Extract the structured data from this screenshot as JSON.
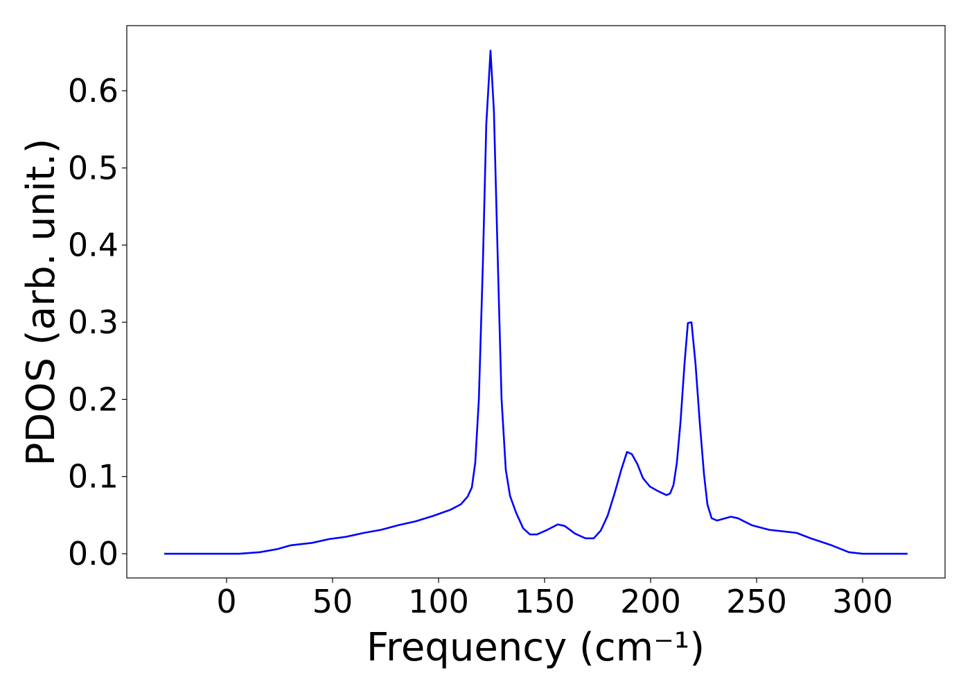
{
  "chart_data": {
    "type": "line",
    "xlabel": "Frequency (cm⁻¹)",
    "ylabel": "PDOS (arb. unit.)",
    "x": [
      -29.4,
      5.9,
      15.7,
      23.9,
      30.4,
      40.2,
      48.4,
      56.5,
      64.7,
      72.9,
      81,
      89.2,
      97.4,
      105.6,
      110.5,
      113.7,
      115.7,
      117.3,
      119,
      120.9,
      122.5,
      124.5,
      126.1,
      128.1,
      129.7,
      131.7,
      133.7,
      136.6,
      139.9,
      143.1,
      146.4,
      151.3,
      156.2,
      159.5,
      164.4,
      169.3,
      173.2,
      176.5,
      179.7,
      183,
      186.3,
      188.9,
      191.2,
      193.8,
      196.4,
      199.7,
      203.6,
      207.5,
      209.2,
      210.8,
      212.4,
      214.1,
      216,
      217.6,
      219.3,
      221.2,
      223.2,
      225.2,
      226.8,
      228.8,
      231.4,
      237.9,
      241.2,
      247.7,
      255.9,
      268.9,
      275.5,
      285.3,
      293.5,
      300,
      321.2
    ],
    "series": [
      {
        "name": "PDOS",
        "color": "#0000ff",
        "values": [
          0,
          0,
          0.002,
          0.006,
          0.011,
          0.014,
          0.019,
          0.022,
          0.027,
          0.031,
          0.037,
          0.042,
          0.049,
          0.057,
          0.064,
          0.074,
          0.086,
          0.118,
          0.2,
          0.376,
          0.556,
          0.652,
          0.574,
          0.363,
          0.201,
          0.109,
          0.075,
          0.053,
          0.033,
          0.025,
          0.025,
          0.031,
          0.038,
          0.036,
          0.026,
          0.02,
          0.02,
          0.03,
          0.049,
          0.078,
          0.11,
          0.132,
          0.129,
          0.116,
          0.098,
          0.087,
          0.081,
          0.076,
          0.078,
          0.089,
          0.118,
          0.17,
          0.246,
          0.299,
          0.3,
          0.246,
          0.17,
          0.103,
          0.064,
          0.046,
          0.043,
          0.048,
          0.046,
          0.037,
          0.031,
          0.027,
          0.02,
          0.011,
          0.002,
          0,
          0
        ]
      }
    ],
    "xlim": [
      -47.06,
      338.9
    ],
    "ylim": [
      -0.0314,
      0.6844
    ],
    "xticks": [
      0,
      50,
      100,
      150,
      200,
      250,
      300
    ],
    "yticks": [
      {
        "value": 0,
        "label": "0.0"
      },
      0.1,
      0.2,
      0.3,
      0.4,
      0.5,
      0.6
    ]
  }
}
